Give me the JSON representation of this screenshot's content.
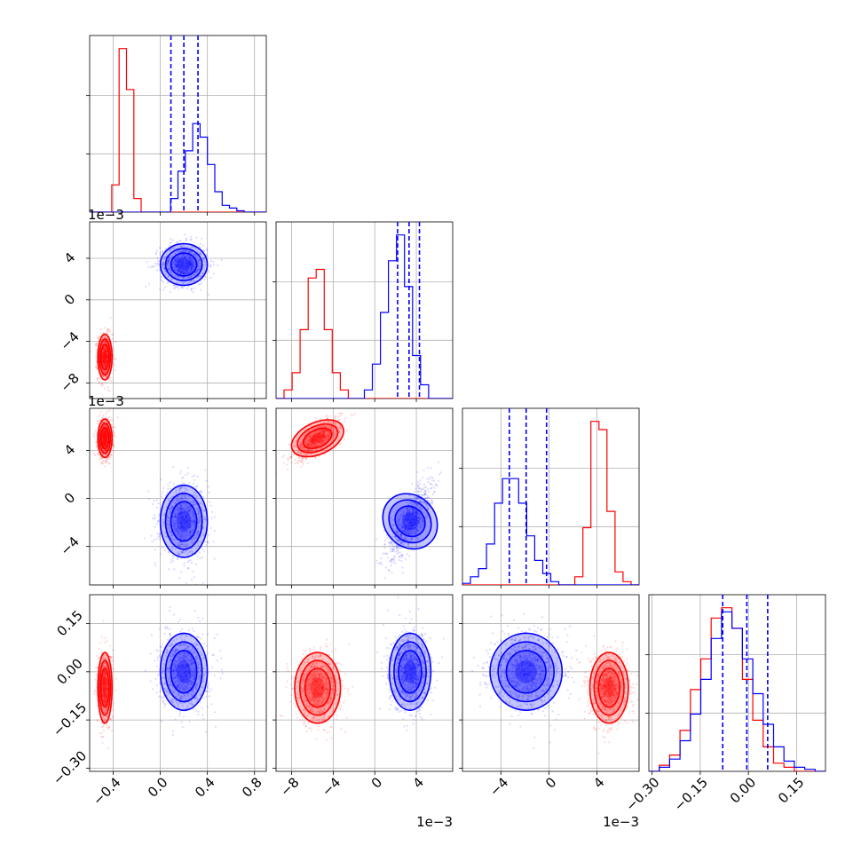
{
  "chart_data": {
    "type": "corner",
    "grid": true,
    "colors": {
      "red": "#ff0000",
      "blue": "#0000ff"
    },
    "params": [
      {
        "range": [
          -0.6,
          0.9
        ],
        "ticks": [
          -0.4,
          0.0,
          0.4,
          0.8
        ],
        "tick_labels": [
          "−0.4",
          "0.0",
          "0.4",
          "0.8"
        ],
        "offset": ""
      },
      {
        "range": [
          -9.5,
          7.5
        ],
        "ticks": [
          -8,
          -4,
          0,
          4
        ],
        "tick_labels": [
          "−8",
          "−4",
          "0",
          "4"
        ],
        "offset": "1e−3"
      },
      {
        "range": [
          -7.2,
          7.5
        ],
        "ticks": [
          -4,
          0,
          4
        ],
        "tick_labels": [
          "−4",
          "0",
          "4"
        ],
        "offset": "1e−3"
      },
      {
        "range": [
          -0.31,
          0.24
        ],
        "ticks": [
          -0.3,
          -0.15,
          0.0,
          0.15
        ],
        "tick_labels": [
          "−0.30",
          "−0.15",
          "0.00",
          "0.15"
        ],
        "offset": ""
      }
    ],
    "series": [
      {
        "color": "red",
        "mean": [
          -0.47,
          -5.5,
          5.0,
          -0.05
        ],
        "sd": [
          0.03,
          1.1,
          0.8,
          0.055
        ],
        "corr": {
          "1-2": 0.7
        }
      },
      {
        "color": "blue",
        "mean": [
          0.2,
          3.4,
          -1.9,
          0.0
        ],
        "sd": [
          0.1,
          1.0,
          1.5,
          0.06
        ],
        "corr": {
          "1-2": 0.75
        }
      }
    ],
    "quantile_lines": {
      "p0": [
        0.09,
        0.2,
        0.32
      ],
      "p1": [
        2.2,
        3.3,
        4.3
      ],
      "p2": [
        -3.3,
        -1.9,
        -0.2
      ],
      "p3": [
        -0.08,
        -0.005,
        0.06
      ]
    },
    "histograms": [
      {
        "red": [
          0,
          0,
          0,
          2,
          12,
          9,
          1,
          0,
          0,
          0,
          0,
          0,
          0,
          0,
          0,
          0,
          0,
          0,
          0,
          0,
          0,
          0,
          0,
          0
        ],
        "blue": [
          0,
          0,
          0,
          0,
          0,
          0,
          0,
          0,
          0,
          0,
          0,
          1,
          3,
          4.5,
          6.5,
          5.5,
          3.5,
          1.5,
          0.5,
          0.3,
          0.1,
          0,
          0,
          0
        ]
      },
      {
        "red": [
          0,
          0.5,
          1.5,
          4,
          7,
          7.5,
          4,
          1.5,
          0.5,
          0,
          0,
          0,
          0,
          0,
          0,
          0,
          0,
          0,
          0,
          0,
          0,
          0
        ],
        "blue": [
          0,
          0,
          0,
          0,
          0,
          0,
          0,
          0,
          0,
          0,
          0,
          0.5,
          2,
          5,
          8,
          9.5,
          6.5,
          2.5,
          0.8,
          0,
          0,
          0
        ]
      },
      {
        "red": [
          0,
          0,
          0,
          0,
          0,
          0,
          0,
          0,
          0,
          0,
          0,
          0,
          0,
          0,
          0.5,
          3.5,
          10,
          9.5,
          4.5,
          0.8,
          0.2,
          0
        ],
        "blue": [
          0.1,
          0.5,
          1,
          2.5,
          5,
          6.5,
          6.5,
          5,
          3,
          1.5,
          0.7,
          0.2,
          0,
          0,
          0,
          0,
          0,
          0,
          0,
          0,
          0,
          0
        ]
      },
      {
        "red": [
          0,
          0.3,
          0.8,
          2,
          4,
          5.5,
          7.5,
          8,
          7,
          4.5,
          2.5,
          1.2,
          0.4,
          0.2,
          0,
          0,
          0
        ],
        "blue": [
          0,
          0.2,
          0.6,
          1.5,
          2.8,
          4.5,
          6.5,
          7.8,
          7,
          5.5,
          3.8,
          2.3,
          1.2,
          0.5,
          0.2,
          0.1,
          0
        ]
      }
    ]
  }
}
